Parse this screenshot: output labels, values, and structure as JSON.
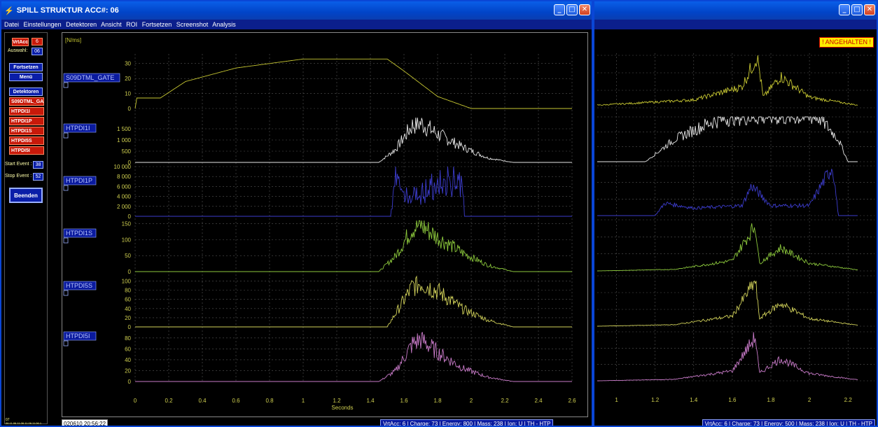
{
  "window1": {
    "title": "SPILL STRUKTUR ACC#: 06",
    "menu": [
      "Datei",
      "Einstellungen",
      "Detektoren",
      "Ansicht",
      "ROI",
      "Fortsetzen",
      "Screenshot",
      "Analysis"
    ],
    "left": {
      "vrtacc_label": "VrtAcc",
      "vrtacc_value": "6",
      "auswahl_label": "Auswahl:",
      "auswahl_value": "06",
      "fortsetzen": "Fortsetzen",
      "menu": "Menü",
      "detektoren": "Detektoren",
      "detectors": [
        "S09DTML_GA",
        "HTPDI1I",
        "HTPDI1P",
        "HTPDI1S",
        "HTPDI5S",
        "HTPDI5I"
      ],
      "start_event_label": "Start Event :",
      "start_event_value": "38",
      "stop_event_label": "Stop Event :",
      "stop_event_value": "52",
      "beenden": "Beenden",
      "footer_small_1": "07",
      "footer_small_2": "06.11.06.11.06.11.06.11.06.1"
    },
    "unit_label": "[N/ms]",
    "date": "020610 20:56:22",
    "status": "VrtAcc: 6 | Charge: 73 | Energy: 800 | Mass: 238 | Ion: U | TH - HTP"
  },
  "window2": {
    "badge": "! ANGEHALTEN !",
    "status": "VrtAcc: 6 | Charge: 73 | Energy: 500 | Mass: 238 | Ion: U | TH - HTP"
  },
  "chart_data": [
    {
      "type": "line",
      "panel": "main",
      "x_axis": {
        "label": "Seconds",
        "range": [
          0,
          2.6
        ],
        "ticks": [
          "0",
          "0.2",
          "0.4",
          "0.6",
          "0.8",
          "1",
          "1.2",
          "1.4",
          "1.6",
          "1.8",
          "2",
          "2.2",
          "2.4",
          "2.6"
        ]
      },
      "grid": true,
      "channels": [
        {
          "name": "S09DTML_GATE",
          "color": "#c8c832",
          "ylim": [
            0,
            35
          ],
          "yticks": [
            "30",
            "20",
            "10",
            "0"
          ],
          "shape": "gate",
          "points": [
            [
              0,
              0
            ],
            [
              0.01,
              7
            ],
            [
              0.15,
              7
            ],
            [
              0.3,
              18
            ],
            [
              0.6,
              27
            ],
            [
              1.0,
              33
            ],
            [
              1.5,
              33
            ],
            [
              1.6,
              25
            ],
            [
              1.8,
              8
            ],
            [
              2.0,
              0
            ],
            [
              2.6,
              0
            ]
          ]
        },
        {
          "name": "HTPDI1I",
          "color": "#e6e6e6",
          "ylim": [
            0,
            2000
          ],
          "yticks": [
            "1 500",
            "1 000",
            "500",
            "0"
          ],
          "shape": "spill",
          "points": [
            [
              0,
              0
            ],
            [
              1.45,
              0
            ],
            [
              1.55,
              600
            ],
            [
              1.65,
              1700
            ],
            [
              1.7,
              1800
            ],
            [
              1.8,
              1300
            ],
            [
              1.95,
              700
            ],
            [
              2.1,
              200
            ],
            [
              2.25,
              0
            ],
            [
              2.6,
              0
            ]
          ]
        },
        {
          "name": "HTPDI1P",
          "color": "#3c3ccc",
          "ylim": [
            0,
            10000
          ],
          "yticks": [
            "10 000",
            "8 000",
            "6 000",
            "4 000",
            "2 000",
            "0"
          ],
          "shape": "plateau",
          "points": [
            [
              0,
              0
            ],
            [
              1.52,
              0
            ],
            [
              1.55,
              7000
            ],
            [
              1.6,
              4000
            ],
            [
              1.7,
              5000
            ],
            [
              1.8,
              6000
            ],
            [
              1.9,
              7500
            ],
            [
              1.95,
              9000
            ],
            [
              1.96,
              0
            ],
            [
              2.6,
              0
            ]
          ]
        },
        {
          "name": "HTPDI1S",
          "color": "#8cc83c",
          "ylim": [
            0,
            160
          ],
          "yticks": [
            "150",
            "100",
            "50",
            "0"
          ],
          "shape": "spill",
          "points": [
            [
              0,
              0
            ],
            [
              1.45,
              0
            ],
            [
              1.55,
              50
            ],
            [
              1.65,
              140
            ],
            [
              1.7,
              150
            ],
            [
              1.8,
              110
            ],
            [
              1.95,
              60
            ],
            [
              2.1,
              20
            ],
            [
              2.25,
              0
            ],
            [
              2.6,
              0
            ]
          ]
        },
        {
          "name": "HTPDI5S",
          "color": "#d2d25a",
          "ylim": [
            0,
            110
          ],
          "yticks": [
            "100",
            "80",
            "60",
            "40",
            "20",
            "0"
          ],
          "shape": "spill",
          "points": [
            [
              0,
              0
            ],
            [
              1.5,
              0
            ],
            [
              1.55,
              30
            ],
            [
              1.65,
              90
            ],
            [
              1.7,
              100
            ],
            [
              1.8,
              80
            ],
            [
              1.95,
              40
            ],
            [
              2.1,
              15
            ],
            [
              2.25,
              0
            ],
            [
              2.6,
              0
            ]
          ]
        },
        {
          "name": "HTPDI5I",
          "color": "#c87ac8",
          "ylim": [
            0,
            90
          ],
          "yticks": [
            "80",
            "60",
            "40",
            "20",
            "0"
          ],
          "shape": "spill",
          "points": [
            [
              0,
              0
            ],
            [
              1.45,
              0
            ],
            [
              1.55,
              20
            ],
            [
              1.65,
              70
            ],
            [
              1.7,
              80
            ],
            [
              1.8,
              55
            ],
            [
              1.95,
              25
            ],
            [
              2.1,
              8
            ],
            [
              2.25,
              0
            ],
            [
              2.6,
              0
            ]
          ]
        }
      ]
    },
    {
      "type": "line",
      "panel": "secondary",
      "x_axis": {
        "range": [
          0.9,
          2.25
        ],
        "ticks": [
          "1",
          "1.2",
          "1.4",
          "1.6",
          "1.8",
          "2",
          "2.2"
        ]
      },
      "grid": true
    }
  ]
}
